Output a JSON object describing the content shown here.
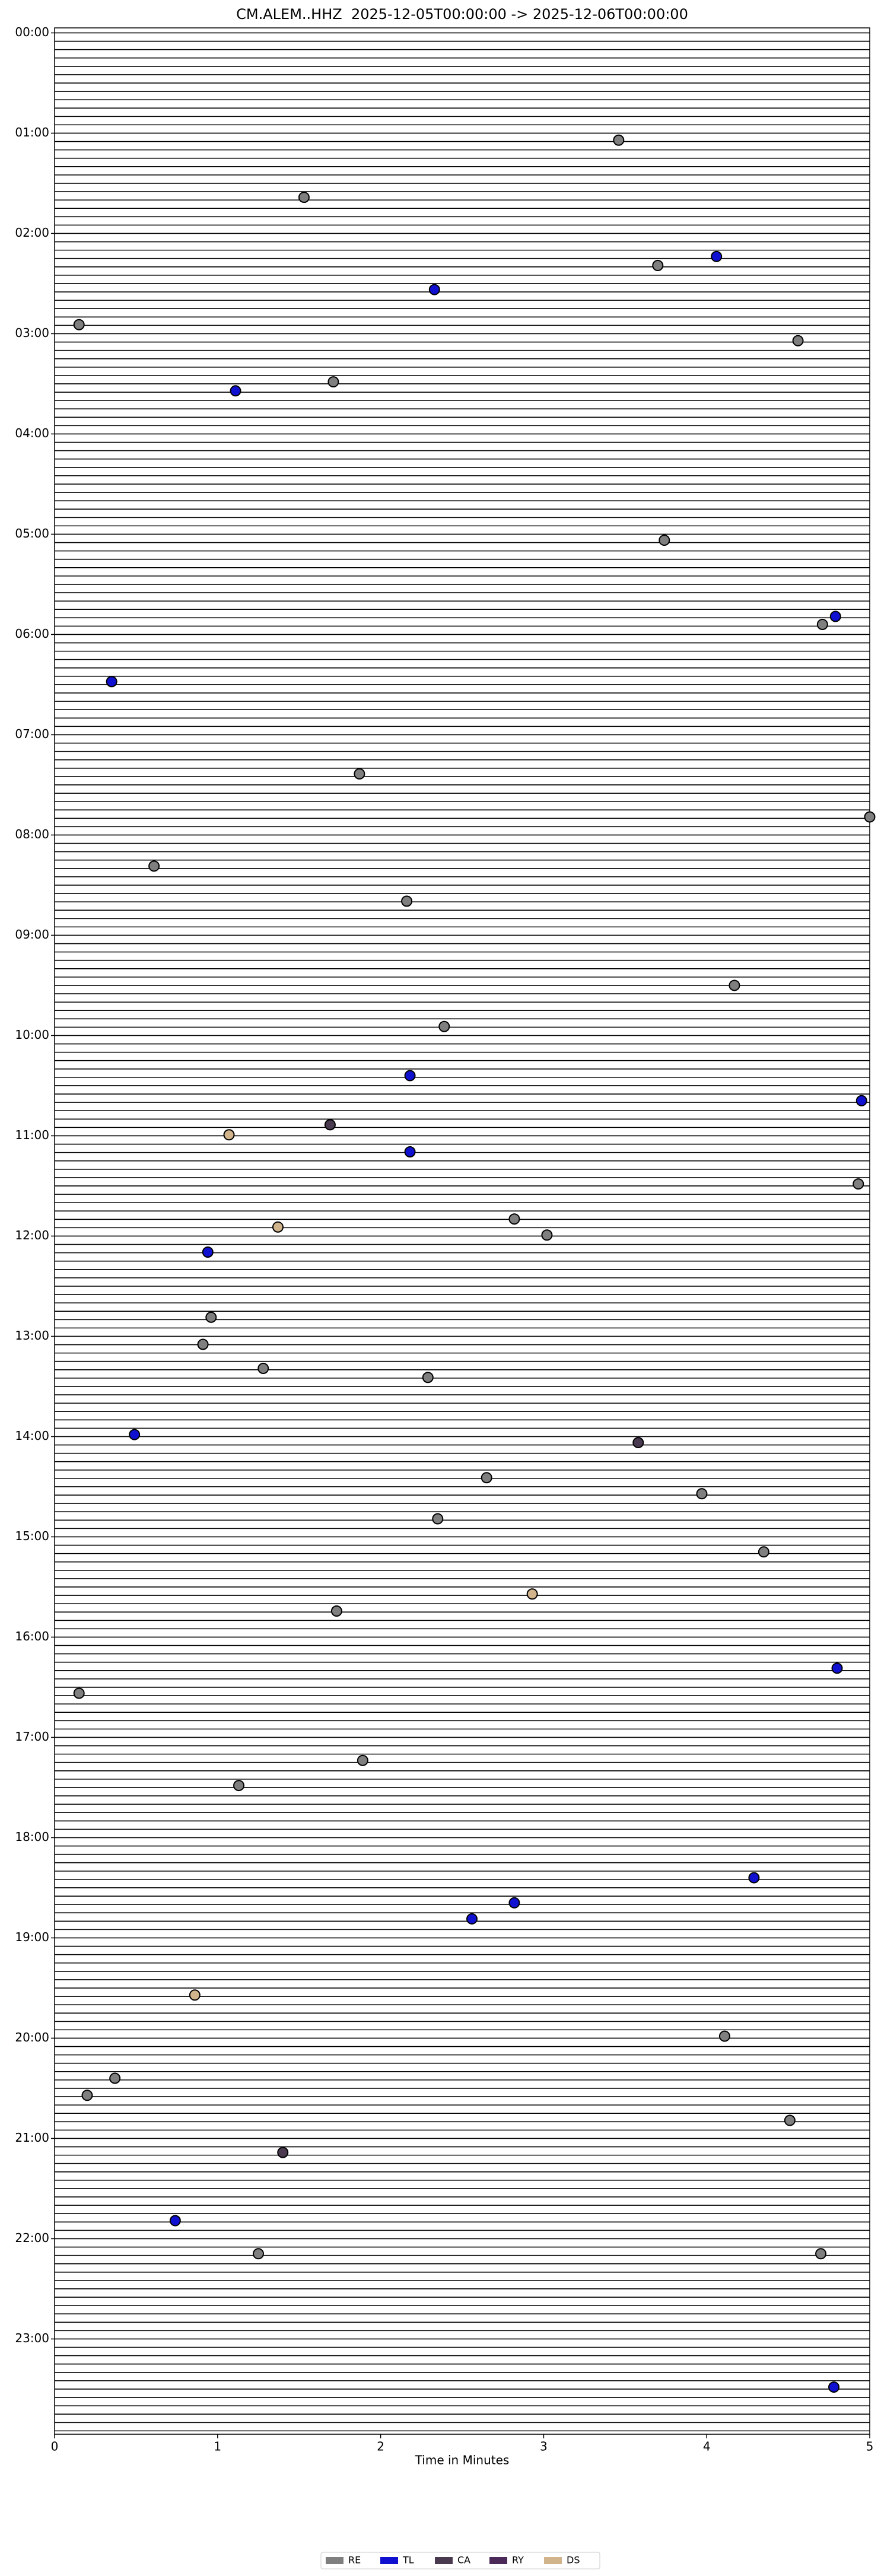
{
  "chart_data": {
    "type": "scatter",
    "title": "CM.ALEM..HHZ  2025-12-05T00:00:00 -> 2025-12-06T00:00:00",
    "x_label": "Time in Minutes",
    "xlim": [
      0,
      5
    ],
    "xticks": [
      0,
      1,
      2,
      3,
      4,
      5
    ],
    "ylim": [
      -0.05,
      23.95
    ],
    "yticks": [
      {
        "value": 0,
        "label": "00:00"
      },
      {
        "value": 1,
        "label": "01:00"
      },
      {
        "value": 2,
        "label": "02:00"
      },
      {
        "value": 3,
        "label": "03:00"
      },
      {
        "value": 4,
        "label": "04:00"
      },
      {
        "value": 5,
        "label": "05:00"
      },
      {
        "value": 6,
        "label": "06:00"
      },
      {
        "value": 7,
        "label": "07:00"
      },
      {
        "value": 8,
        "label": "08:00"
      },
      {
        "value": 9,
        "label": "09:00"
      },
      {
        "value": 10,
        "label": "10:00"
      },
      {
        "value": 11,
        "label": "11:00"
      },
      {
        "value": 12,
        "label": "12:00"
      },
      {
        "value": 13,
        "label": "13:00"
      },
      {
        "value": 14,
        "label": "14:00"
      },
      {
        "value": 15,
        "label": "15:00"
      },
      {
        "value": 16,
        "label": "16:00"
      },
      {
        "value": 17,
        "label": "17:00"
      },
      {
        "value": 18,
        "label": "18:00"
      },
      {
        "value": 19,
        "label": "19:00"
      },
      {
        "value": 20,
        "label": "20:00"
      },
      {
        "value": 21,
        "label": "21:00"
      },
      {
        "value": 22,
        "label": "22:00"
      },
      {
        "value": 23,
        "label": "23:00"
      }
    ],
    "y_inverted": true,
    "legend": "bottom",
    "series": [
      {
        "name": "RE",
        "color": "#7f7f7f",
        "x": [
          3.46,
          1.53,
          3.7,
          0.15,
          4.56,
          1.71,
          3.74,
          4.71,
          1.87,
          5.0,
          0.61,
          2.16,
          4.17,
          2.39,
          4.93,
          2.82,
          3.02,
          0.96,
          0.91,
          1.28,
          2.29,
          2.65,
          3.97,
          2.35,
          4.35,
          1.73,
          0.15,
          1.89,
          1.13,
          4.11,
          0.37,
          0.2,
          4.51,
          1.25,
          4.7
        ],
        "values": [
          1.07,
          1.64,
          2.32,
          2.91,
          3.07,
          3.48,
          5.06,
          5.9,
          7.39,
          7.82,
          8.31,
          8.66,
          9.5,
          9.91,
          11.48,
          11.83,
          11.99,
          12.81,
          13.08,
          13.32,
          13.41,
          14.41,
          14.57,
          14.82,
          15.15,
          15.74,
          16.56,
          17.23,
          17.48,
          19.98,
          20.4,
          20.57,
          20.82,
          22.15,
          22.15
        ]
      },
      {
        "name": "TL",
        "color": "#1010d0",
        "x": [
          4.06,
          2.33,
          1.11,
          4.79,
          0.35,
          2.18,
          4.95,
          2.18,
          0.94,
          0.49,
          4.8,
          4.29,
          2.82,
          2.56,
          0.74,
          4.78
        ],
        "values": [
          2.23,
          2.56,
          3.57,
          5.82,
          6.47,
          10.4,
          10.65,
          11.16,
          12.16,
          13.98,
          16.31,
          18.4,
          18.65,
          18.81,
          21.82,
          23.48
        ]
      },
      {
        "name": "CA",
        "color": "#4a3a50",
        "x": [
          1.69,
          3.58,
          1.4
        ],
        "values": [
          10.89,
          14.06,
          21.14
        ]
      },
      {
        "name": "RY",
        "color": "#4b2a5a",
        "x": [],
        "values": []
      },
      {
        "name": "DS",
        "color": "#d2b48c",
        "x": [
          1.07,
          1.37,
          2.93,
          0.86
        ],
        "values": [
          10.99,
          11.91,
          15.57,
          19.57
        ]
      }
    ]
  }
}
